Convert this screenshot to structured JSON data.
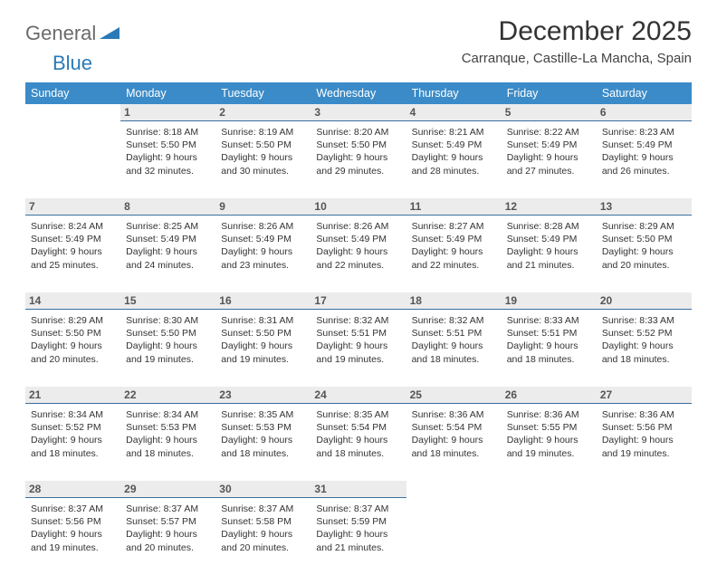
{
  "logo": {
    "general": "General",
    "blue": "Blue"
  },
  "title": "December 2025",
  "subtitle": "Carranque, Castille-La Mancha, Spain",
  "colors": {
    "header_bg": "#3b8bc8",
    "row_divider": "#3b6fa0",
    "daynum_bg": "#ececec",
    "logo_gray": "#6b6b6b",
    "logo_blue": "#2a7ab8"
  },
  "day_headers": [
    "Sunday",
    "Monday",
    "Tuesday",
    "Wednesday",
    "Thursday",
    "Friday",
    "Saturday"
  ],
  "weeks": [
    [
      null,
      {
        "n": "1",
        "sr": "8:18 AM",
        "ss": "5:50 PM",
        "dl": "9 hours and 32 minutes."
      },
      {
        "n": "2",
        "sr": "8:19 AM",
        "ss": "5:50 PM",
        "dl": "9 hours and 30 minutes."
      },
      {
        "n": "3",
        "sr": "8:20 AM",
        "ss": "5:50 PM",
        "dl": "9 hours and 29 minutes."
      },
      {
        "n": "4",
        "sr": "8:21 AM",
        "ss": "5:49 PM",
        "dl": "9 hours and 28 minutes."
      },
      {
        "n": "5",
        "sr": "8:22 AM",
        "ss": "5:49 PM",
        "dl": "9 hours and 27 minutes."
      },
      {
        "n": "6",
        "sr": "8:23 AM",
        "ss": "5:49 PM",
        "dl": "9 hours and 26 minutes."
      }
    ],
    [
      {
        "n": "7",
        "sr": "8:24 AM",
        "ss": "5:49 PM",
        "dl": "9 hours and 25 minutes."
      },
      {
        "n": "8",
        "sr": "8:25 AM",
        "ss": "5:49 PM",
        "dl": "9 hours and 24 minutes."
      },
      {
        "n": "9",
        "sr": "8:26 AM",
        "ss": "5:49 PM",
        "dl": "9 hours and 23 minutes."
      },
      {
        "n": "10",
        "sr": "8:26 AM",
        "ss": "5:49 PM",
        "dl": "9 hours and 22 minutes."
      },
      {
        "n": "11",
        "sr": "8:27 AM",
        "ss": "5:49 PM",
        "dl": "9 hours and 22 minutes."
      },
      {
        "n": "12",
        "sr": "8:28 AM",
        "ss": "5:49 PM",
        "dl": "9 hours and 21 minutes."
      },
      {
        "n": "13",
        "sr": "8:29 AM",
        "ss": "5:50 PM",
        "dl": "9 hours and 20 minutes."
      }
    ],
    [
      {
        "n": "14",
        "sr": "8:29 AM",
        "ss": "5:50 PM",
        "dl": "9 hours and 20 minutes."
      },
      {
        "n": "15",
        "sr": "8:30 AM",
        "ss": "5:50 PM",
        "dl": "9 hours and 19 minutes."
      },
      {
        "n": "16",
        "sr": "8:31 AM",
        "ss": "5:50 PM",
        "dl": "9 hours and 19 minutes."
      },
      {
        "n": "17",
        "sr": "8:32 AM",
        "ss": "5:51 PM",
        "dl": "9 hours and 19 minutes."
      },
      {
        "n": "18",
        "sr": "8:32 AM",
        "ss": "5:51 PM",
        "dl": "9 hours and 18 minutes."
      },
      {
        "n": "19",
        "sr": "8:33 AM",
        "ss": "5:51 PM",
        "dl": "9 hours and 18 minutes."
      },
      {
        "n": "20",
        "sr": "8:33 AM",
        "ss": "5:52 PM",
        "dl": "9 hours and 18 minutes."
      }
    ],
    [
      {
        "n": "21",
        "sr": "8:34 AM",
        "ss": "5:52 PM",
        "dl": "9 hours and 18 minutes."
      },
      {
        "n": "22",
        "sr": "8:34 AM",
        "ss": "5:53 PM",
        "dl": "9 hours and 18 minutes."
      },
      {
        "n": "23",
        "sr": "8:35 AM",
        "ss": "5:53 PM",
        "dl": "9 hours and 18 minutes."
      },
      {
        "n": "24",
        "sr": "8:35 AM",
        "ss": "5:54 PM",
        "dl": "9 hours and 18 minutes."
      },
      {
        "n": "25",
        "sr": "8:36 AM",
        "ss": "5:54 PM",
        "dl": "9 hours and 18 minutes."
      },
      {
        "n": "26",
        "sr": "8:36 AM",
        "ss": "5:55 PM",
        "dl": "9 hours and 19 minutes."
      },
      {
        "n": "27",
        "sr": "8:36 AM",
        "ss": "5:56 PM",
        "dl": "9 hours and 19 minutes."
      }
    ],
    [
      {
        "n": "28",
        "sr": "8:37 AM",
        "ss": "5:56 PM",
        "dl": "9 hours and 19 minutes."
      },
      {
        "n": "29",
        "sr": "8:37 AM",
        "ss": "5:57 PM",
        "dl": "9 hours and 20 minutes."
      },
      {
        "n": "30",
        "sr": "8:37 AM",
        "ss": "5:58 PM",
        "dl": "9 hours and 20 minutes."
      },
      {
        "n": "31",
        "sr": "8:37 AM",
        "ss": "5:59 PM",
        "dl": "9 hours and 21 minutes."
      },
      null,
      null,
      null
    ]
  ],
  "labels": {
    "sunrise": "Sunrise: ",
    "sunset": "Sunset: ",
    "daylight": "Daylight: "
  }
}
